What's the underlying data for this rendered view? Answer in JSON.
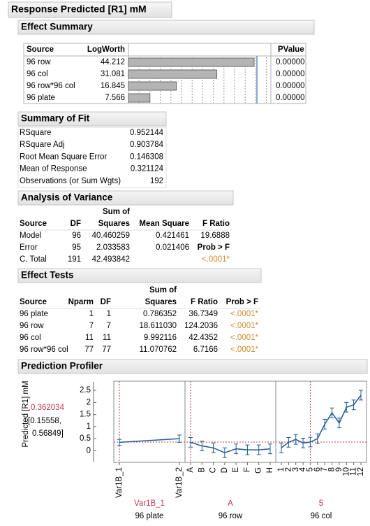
{
  "title": "Response Predicted [R1] mM",
  "effect_summary": {
    "title": "Effect Summary",
    "columns": [
      "Source",
      "LogWorth",
      "PValue"
    ],
    "rows": [
      [
        "96 row",
        44.212,
        "0.00000"
      ],
      [
        "96 col",
        31.081,
        "0.00000"
      ],
      [
        "96 row*96 col",
        16.845,
        "0.00000"
      ],
      [
        "96 plate",
        7.566,
        "0.00000"
      ]
    ],
    "bar_color": "#b4b4b4",
    "threshold_color": "#4a6fc0"
  },
  "summary_of_fit": {
    "title": "Summary of Fit",
    "rows": [
      [
        "RSquare",
        0.952144
      ],
      [
        "RSquare Adj",
        0.903784
      ],
      [
        "Root Mean Square Error",
        0.146308
      ],
      [
        "Mean of Response",
        0.321124
      ],
      [
        "Observations (or Sum Wgts)",
        192
      ]
    ]
  },
  "analysis_of_variance": {
    "title": "Analysis of Variance",
    "columns": [
      [
        "Source"
      ],
      [
        "DF"
      ],
      [
        "Sum of",
        "Squares"
      ],
      [
        "Mean Square"
      ],
      [
        "F Ratio"
      ]
    ],
    "rows": [
      [
        "Model",
        96,
        40.460259,
        0.421461,
        19.6888
      ],
      [
        "Error",
        95,
        2.033583,
        0.021406,
        "Prob > F"
      ],
      [
        "C. Total",
        191,
        42.493842,
        null,
        "<.0001*"
      ]
    ]
  },
  "effect_tests": {
    "title": "Effect Tests",
    "columns": [
      [
        "Source"
      ],
      [
        "Nparm"
      ],
      [
        "DF"
      ],
      [
        "Sum of",
        "Squares"
      ],
      [
        "F Ratio"
      ],
      [
        "Prob > F"
      ]
    ],
    "rows": [
      [
        "96 plate",
        1,
        1,
        0.786352,
        36.7349,
        "<.0001*"
      ],
      [
        "96 row",
        7,
        7,
        "18.611030",
        124.2036,
        "<.0001*"
      ],
      [
        "96 col",
        11,
        11,
        9.992116,
        42.4352,
        "<.0001*"
      ],
      [
        "96 row*96 col",
        77,
        77,
        11.070762,
        6.7166,
        "<.0001*"
      ]
    ]
  },
  "flag_color": "#d08a2a",
  "prediction_profiler": {
    "title": "Prediction Profiler",
    "y_label": "Predicted [R1] mM",
    "current_value": 0.362034,
    "ci_lines": [
      "[0.15558,",
      "0.56849]"
    ],
    "ylim": [
      -0.45,
      2.85
    ],
    "yticks": [
      0,
      0.5,
      1,
      1.5,
      2,
      2.5
    ],
    "line_color": "#1f5a96",
    "reference_color": "#c0394b",
    "factors": [
      {
        "name": "96 plate",
        "current": "Var1B_1",
        "categories": [
          "Var1B_1",
          "Var1B_2"
        ],
        "values": [
          0.35,
          0.5
        ],
        "errors": [
          0.12,
          0.15
        ]
      },
      {
        "name": "96 row",
        "current": "A",
        "categories": [
          "A",
          "B",
          "C",
          "D",
          "E",
          "F",
          "G",
          "H"
        ],
        "values": [
          0.35,
          0.2,
          0.12,
          -0.08,
          0.08,
          0.04,
          0.04,
          0.08
        ],
        "errors": [
          0.2,
          0.2,
          0.2,
          0.2,
          0.2,
          0.2,
          0.2,
          0.2
        ]
      },
      {
        "name": "96 col",
        "current": "5",
        "categories": [
          "1",
          "2",
          "3",
          "4",
          "5",
          "6",
          "7",
          "8",
          "9",
          "10",
          "11",
          "12"
        ],
        "values": [
          0.12,
          0.35,
          0.47,
          0.32,
          0.36,
          0.5,
          1.1,
          1.57,
          1.15,
          1.8,
          1.9,
          2.3
        ],
        "errors": [
          0.2,
          0.2,
          0.2,
          0.2,
          0.2,
          0.2,
          0.2,
          0.2,
          0.2,
          0.2,
          0.2,
          0.2
        ]
      }
    ]
  }
}
